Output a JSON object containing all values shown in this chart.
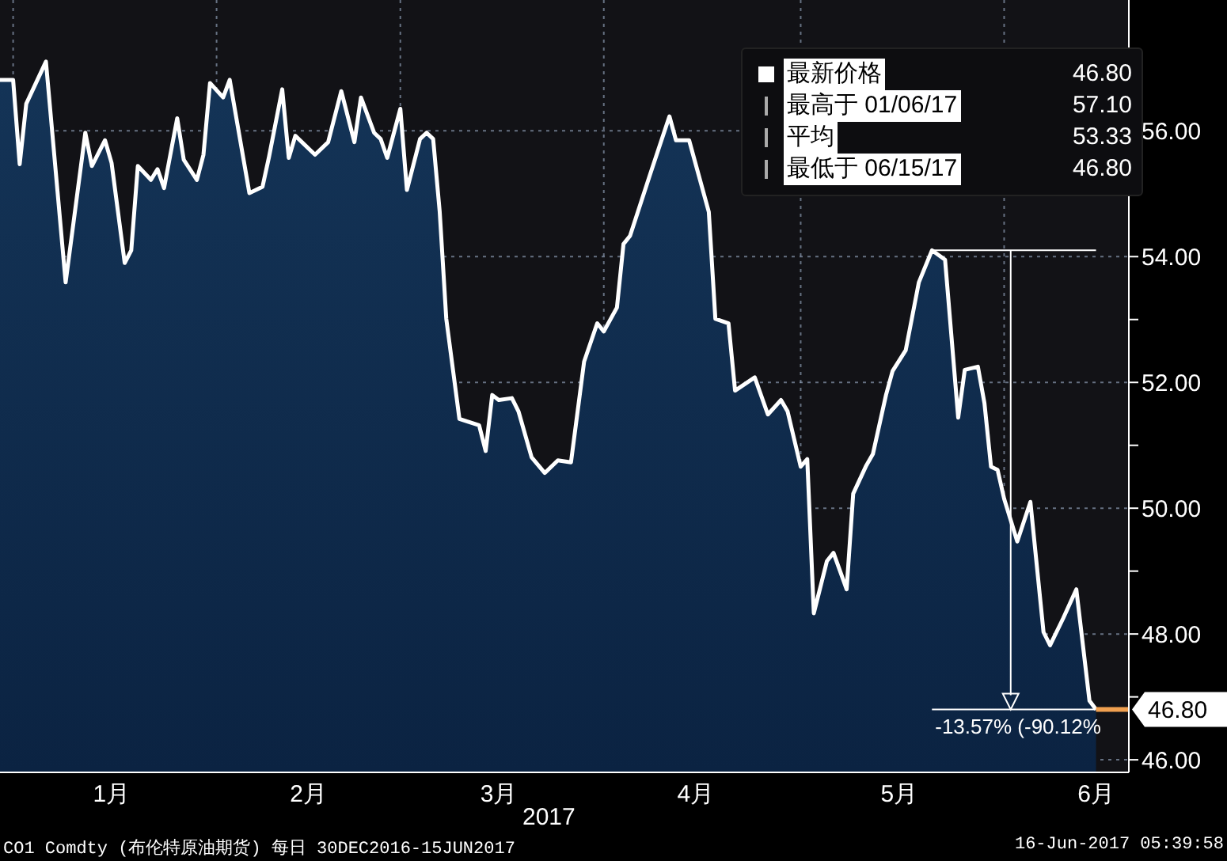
{
  "chart_data": {
    "type": "area",
    "xlabel": "2017",
    "x": [
      "2016-12-30",
      "2017-01-01",
      "2017-01-02",
      "2017-01-03",
      "2017-01-06",
      "2017-01-09",
      "2017-01-12",
      "2017-01-13",
      "2017-01-15",
      "2017-01-16",
      "2017-01-18",
      "2017-01-19",
      "2017-01-20",
      "2017-01-22",
      "2017-01-23",
      "2017-01-24",
      "2017-01-26",
      "2017-01-27",
      "2017-01-29",
      "2017-01-30",
      "2017-01-31",
      "2017-02-02",
      "2017-02-03",
      "2017-02-06",
      "2017-02-08",
      "2017-02-09",
      "2017-02-11",
      "2017-02-12",
      "2017-02-13",
      "2017-02-16",
      "2017-02-18",
      "2017-02-20",
      "2017-02-22",
      "2017-02-23",
      "2017-02-25",
      "2017-02-26",
      "2017-02-27",
      "2017-03-01",
      "2017-03-02",
      "2017-03-04",
      "2017-03-05",
      "2017-03-06",
      "2017-03-07",
      "2017-03-08",
      "2017-03-10",
      "2017-03-13",
      "2017-03-14",
      "2017-03-15",
      "2017-03-16",
      "2017-03-18",
      "2017-03-19",
      "2017-03-21",
      "2017-03-23",
      "2017-03-25",
      "2017-03-27",
      "2017-03-29",
      "2017-03-31",
      "2017-04-01",
      "2017-04-03",
      "2017-04-04",
      "2017-04-05",
      "2017-04-08",
      "2017-04-11",
      "2017-04-12",
      "2017-04-14",
      "2017-04-17",
      "2017-04-18",
      "2017-04-20",
      "2017-04-21",
      "2017-04-24",
      "2017-04-26",
      "2017-04-28",
      "2017-04-29",
      "2017-05-01",
      "2017-05-02",
      "2017-05-03",
      "2017-05-05",
      "2017-05-06",
      "2017-05-08",
      "2017-05-09",
      "2017-05-11",
      "2017-05-12",
      "2017-05-14",
      "2017-05-15",
      "2017-05-17",
      "2017-05-19",
      "2017-05-21",
      "2017-05-23",
      "2017-05-25",
      "2017-05-26",
      "2017-05-28",
      "2017-05-29",
      "2017-05-30",
      "2017-05-31",
      "2017-06-01",
      "2017-06-03",
      "2017-06-05",
      "2017-06-07",
      "2017-06-08",
      "2017-06-10",
      "2017-06-12",
      "2017-06-14",
      "2017-06-15"
    ],
    "series": [
      {
        "color": "#ffffff",
        "values": [
          56.81,
          56.81,
          55.47,
          56.43,
          57.1,
          53.59,
          55.97,
          55.44,
          55.85,
          55.49,
          53.9,
          54.1,
          55.44,
          55.22,
          55.39,
          55.09,
          56.2,
          55.54,
          55.22,
          55.62,
          56.76,
          56.53,
          56.81,
          55.01,
          55.11,
          55.59,
          56.66,
          55.57,
          55.92,
          55.62,
          55.82,
          56.63,
          55.82,
          56.53,
          55.97,
          55.87,
          55.57,
          56.35,
          55.06,
          55.87,
          55.97,
          55.87,
          54.71,
          53.01,
          51.42,
          51.32,
          50.91,
          51.8,
          51.72,
          51.75,
          51.54,
          50.81,
          50.56,
          50.76,
          50.73,
          52.33,
          52.94,
          52.81,
          53.19,
          54.2,
          54.33,
          55.29,
          56.23,
          55.85,
          55.85,
          54.71,
          53.01,
          52.94,
          51.87,
          52.08,
          51.49,
          51.72,
          51.54,
          50.66,
          50.78,
          48.33,
          49.16,
          49.29,
          48.71,
          50.23,
          50.68,
          50.86,
          51.8,
          52.18,
          52.51,
          53.59,
          54.1,
          53.95,
          51.44,
          52.2,
          52.25,
          51.67,
          50.66,
          50.61,
          50.15,
          49.47,
          50.1,
          48.03,
          47.82,
          48.25,
          48.71,
          46.94,
          46.8
        ]
      }
    ],
    "xlim": [
      "2016-12-30",
      "2017-06-20"
    ],
    "xticks": [
      {
        "value": "2017-01-01",
        "label": null
      },
      {
        "value": "2017-01-16",
        "label": "1月"
      },
      {
        "value": "2017-02-01",
        "label": null
      },
      {
        "value": "2017-02-15",
        "label": "2月"
      },
      {
        "value": "2017-03-01",
        "label": null
      },
      {
        "value": "2017-03-16",
        "label": "3月"
      },
      {
        "value": "2017-04-01",
        "label": null
      },
      {
        "value": "2017-04-15",
        "label": "4月"
      },
      {
        "value": "2017-05-01",
        "label": null
      },
      {
        "value": "2017-05-16",
        "label": "5月"
      },
      {
        "value": "2017-06-01",
        "label": null
      },
      {
        "value": "2017-06-15",
        "label": "6月"
      }
    ],
    "ylim": [
      45.8,
      58.08
    ],
    "yticks": [
      {
        "value": 46,
        "label": "46.00"
      },
      {
        "value": 47,
        "label": null
      },
      {
        "value": 48,
        "label": "48.00"
      },
      {
        "value": 49,
        "label": null
      },
      {
        "value": 50,
        "label": "50.00"
      },
      {
        "value": 51,
        "label": null
      },
      {
        "value": 52,
        "label": "52.00"
      },
      {
        "value": 53,
        "label": null
      },
      {
        "value": 54,
        "label": "54.00"
      },
      {
        "value": 55,
        "label": null
      },
      {
        "value": 56,
        "label": "56.00"
      },
      {
        "value": 57,
        "label": null
      }
    ],
    "grid": true,
    "ref_lines": [
      {
        "axis": "y",
        "value": 54.1,
        "color": "#ffffff"
      },
      {
        "axis": "y",
        "value": 46.8,
        "color": "#ffffff"
      },
      {
        "axis": "y",
        "value": 46.8,
        "label": "46.80",
        "color": "#f0a050"
      }
    ],
    "annotations": [
      {
        "text": "-13.57% (-90.12%",
        "x": "2017-05-21",
        "y": 46.8
      },
      "最新价格",
      "46.80",
      "最高于 01/06/17",
      "57.10",
      "平均",
      "53.33",
      "最低于 06/15/17",
      "46.80",
      "CO1 Comdty (布伦特原油期货) 每日 30DEC2016-15JUN2017",
      "16-Jun-2017 05:39:58"
    ]
  }
}
